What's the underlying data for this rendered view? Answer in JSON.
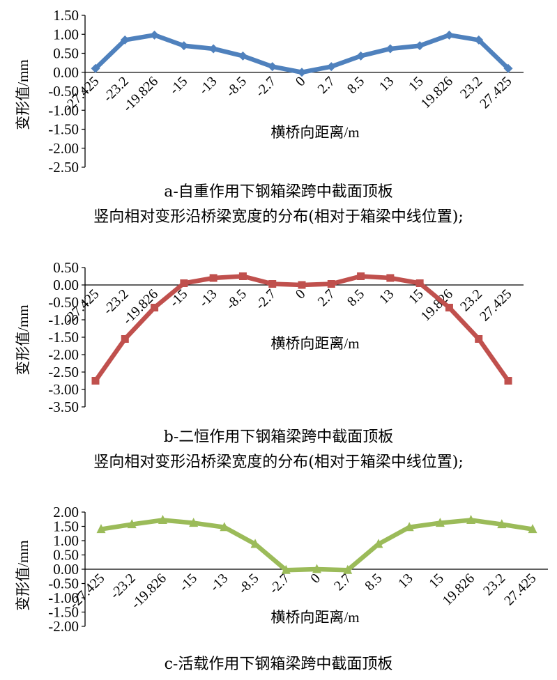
{
  "panels": [
    {
      "chart_data": {
        "type": "line",
        "categories": [
          "-27.425",
          "-23.2",
          "-19.826",
          "-15",
          "-13",
          "-8.5",
          "-2.7",
          "0",
          "2.7",
          "8.5",
          "13",
          "15",
          "19.826",
          "23.2",
          "27.425"
        ],
        "series": [
          {
            "values": [
              0.1,
              0.85,
              0.98,
              0.7,
              0.62,
              0.43,
              0.15,
              0.0,
              0.15,
              0.43,
              0.62,
              0.7,
              0.98,
              0.85,
              0.1
            ]
          }
        ],
        "ylim": [
          -2.5,
          1.5
        ],
        "yticks": [
          "1.50",
          "1.00",
          "0.50",
          "0.00",
          "-0.50",
          "-1.00",
          "-1.50",
          "-2.00",
          "-2.50"
        ],
        "xlabel": "横桥向距离/m",
        "ylabel": "变形值/mm",
        "color": "#4F81BD",
        "marker": "diamond",
        "grid": false,
        "legend": "none"
      },
      "caption_line1": "a-自重作用下钢箱梁跨中截面顶板",
      "caption_line2": "竖向相对变形沿桥梁宽度的分布(相对于箱梁中线位置);"
    },
    {
      "chart_data": {
        "type": "line",
        "categories": [
          "-27.425",
          "-23.2",
          "-19.826",
          "-15",
          "-13",
          "-8.5",
          "-2.7",
          "0",
          "2.7",
          "8.5",
          "13",
          "15",
          "19.826",
          "23.2",
          "27.425"
        ],
        "series": [
          {
            "values": [
              -2.75,
              -1.55,
              -0.65,
              0.05,
              0.2,
              0.25,
              0.03,
              0.0,
              0.03,
              0.25,
              0.2,
              0.05,
              -0.65,
              -1.55,
              -2.75
            ]
          }
        ],
        "ylim": [
          -3.5,
          0.5
        ],
        "yticks": [
          "0.50",
          "0.00",
          "-0.50",
          "-1.00",
          "-1.50",
          "-2.00",
          "-2.50",
          "-3.00",
          "-3.50"
        ],
        "xlabel": "横桥向距离/m",
        "ylabel": "变形值/mm",
        "color": "#C0504D",
        "marker": "square",
        "grid": false,
        "legend": "none"
      },
      "caption_line1": "b-二恒作用下钢箱梁跨中截面顶板",
      "caption_line2": "竖向相对变形沿桥梁宽度的分布(相对于箱梁中线位置);"
    },
    {
      "chart_data": {
        "type": "line",
        "categories": [
          "-27.425",
          "-23.2",
          "-19.826",
          "-15",
          "-13",
          "-8.5",
          "-2.7",
          "0",
          "2.7",
          "8.5",
          "13",
          "15",
          "19.826",
          "23.2",
          "27.425"
        ],
        "series": [
          {
            "values": [
              1.4,
              1.57,
              1.72,
              1.62,
              1.47,
              0.88,
              -0.03,
              0.0,
              -0.03,
              0.88,
              1.47,
              1.62,
              1.72,
              1.57,
              1.4
            ]
          }
        ],
        "ylim": [
          -2.0,
          2.0
        ],
        "yticks": [
          "2.00",
          "1.50",
          "1.00",
          "0.50",
          "0.00",
          "-0.50",
          "-1.00",
          "-1.50",
          "-2.00"
        ],
        "xlabel": "横桥向距离/m",
        "ylabel": "变形值/mm",
        "color": "#9BBB59",
        "marker": "triangle",
        "grid": false,
        "legend": "none"
      },
      "caption_line1": "c-活载作用下钢箱梁跨中截面顶板"
    }
  ]
}
